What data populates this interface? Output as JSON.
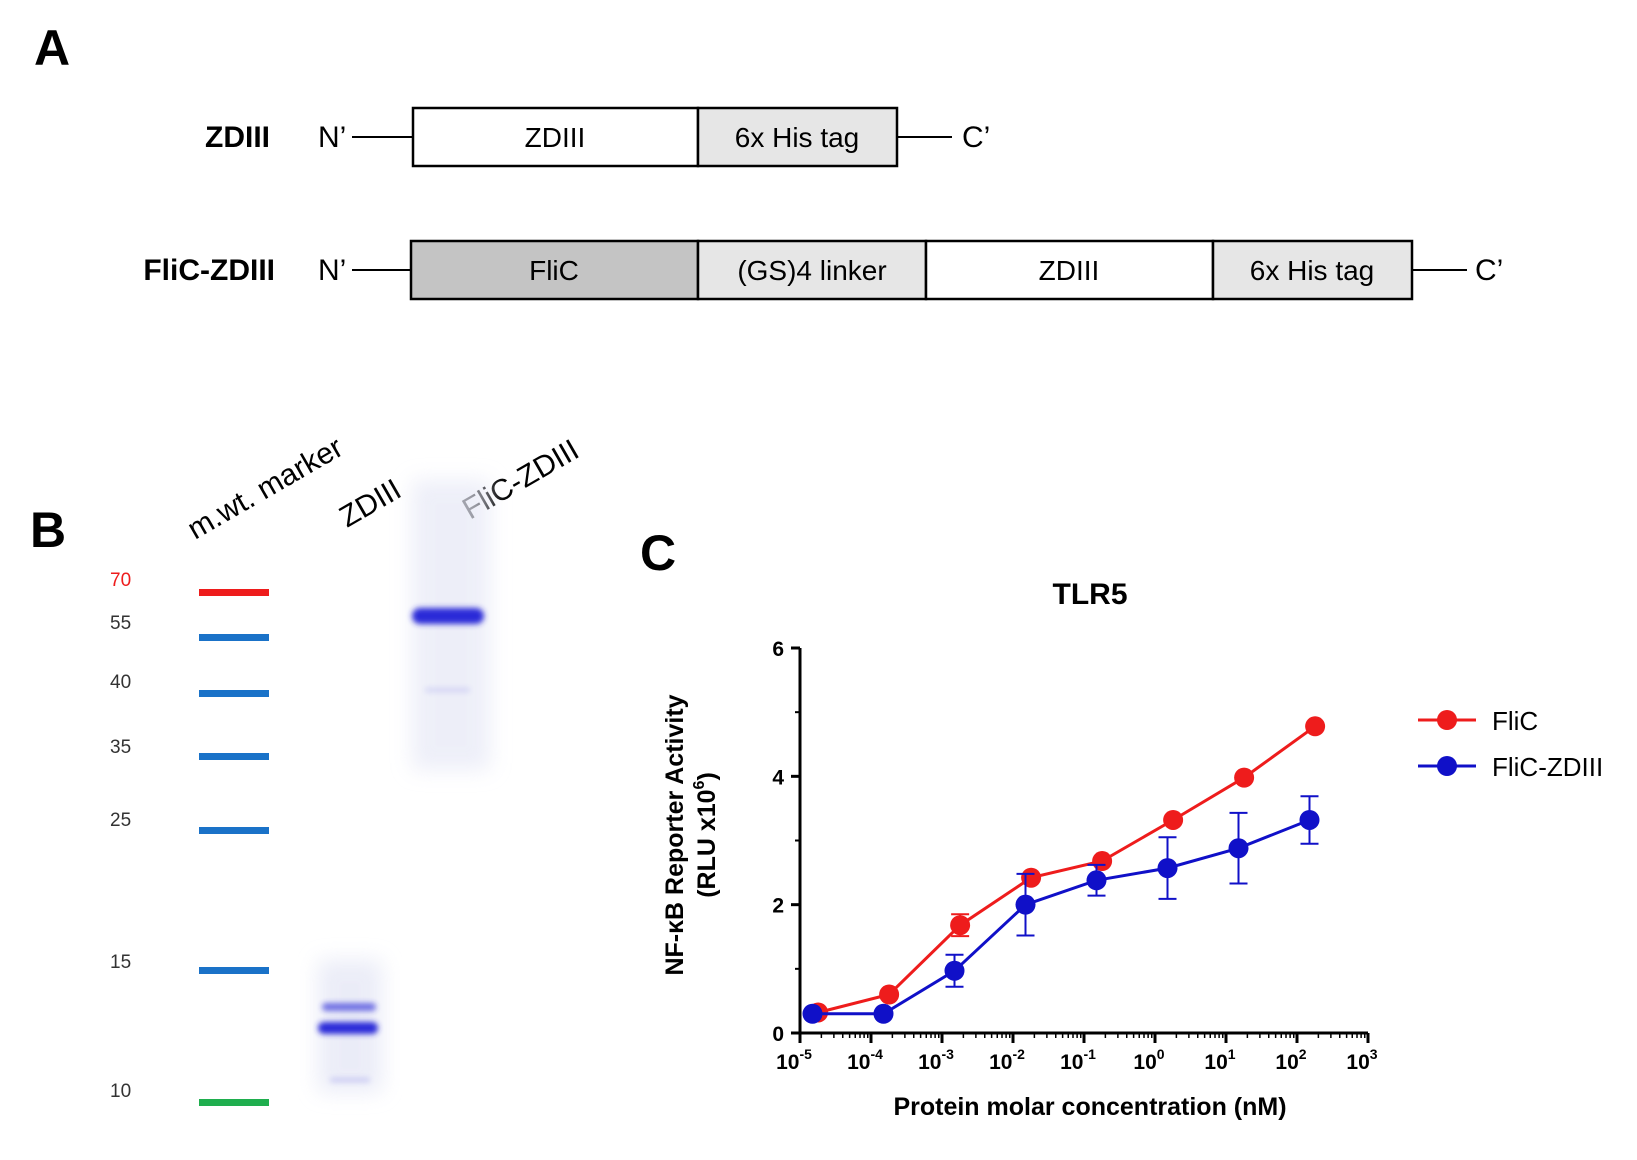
{
  "panels": {
    "a": "A",
    "b": "B",
    "c": "C"
  },
  "constructs": [
    {
      "name": "ZDIII",
      "n_term": "N’",
      "c_term": "C’",
      "segments": [
        {
          "label": "ZDIII",
          "color": "#ffffff"
        },
        {
          "label": "6x His tag",
          "color": "#e6e6e6"
        }
      ]
    },
    {
      "name": "FliC-ZDIII",
      "n_term": "N’",
      "c_term": "C’",
      "segments": [
        {
          "label": "FliC",
          "color": "#c4c4c4"
        },
        {
          "label": "(GS)4 linker",
          "color": "#e6e6e6"
        },
        {
          "label": "ZDIII",
          "color": "#ffffff"
        },
        {
          "label": "6x His tag",
          "color": "#e6e6e6"
        }
      ]
    }
  ],
  "gel": {
    "lane_labels": [
      "m.wt. marker",
      "ZDIII",
      "FliC-ZDIII"
    ],
    "markers": [
      {
        "label": "70",
        "color": "#ee1c1c"
      },
      {
        "label": "55",
        "color": "#1a72c8"
      },
      {
        "label": "40",
        "color": "#1a72c8"
      },
      {
        "label": "35",
        "color": "#1a72c8"
      },
      {
        "label": "25",
        "color": "#1a72c8"
      },
      {
        "label": "15",
        "color": "#1a72c8"
      },
      {
        "label": "10",
        "color": "#1fae4e"
      }
    ],
    "marker_label_colors": [
      "#ee1c1c",
      "#333333",
      "#333333",
      "#333333",
      "#333333",
      "#333333",
      "#333333"
    ],
    "band_color": "#2a2ad8"
  },
  "chart_data": {
    "type": "line",
    "title": "TLR5",
    "xlabel": "Protein molar concentration (nM)",
    "ylabel_line1": "NF-κB Reporter Activity",
    "ylabel_line2": "(RLU x10",
    "ylabel_sup": "6",
    "ylabel_close": ")",
    "x_scale": "log",
    "xlim": [
      1e-05,
      1000
    ],
    "ylim": [
      0,
      6
    ],
    "x_ticks": [
      {
        "base": "10",
        "exp": "-5"
      },
      {
        "base": "10",
        "exp": "-4"
      },
      {
        "base": "10",
        "exp": "-3"
      },
      {
        "base": "10",
        "exp": "-2"
      },
      {
        "base": "10",
        "exp": "-1"
      },
      {
        "base": "10",
        "exp": "0"
      },
      {
        "base": "10",
        "exp": "1"
      },
      {
        "base": "10",
        "exp": "2"
      },
      {
        "base": "10",
        "exp": "3"
      }
    ],
    "y_ticks": [
      "0",
      "2",
      "4",
      "6"
    ],
    "legend_position": "right",
    "series": [
      {
        "name": "FliC",
        "color": "#ee1c1c",
        "x": [
          1.8e-05,
          0.00018,
          0.0018,
          0.018,
          0.18,
          1.8,
          18,
          180
        ],
        "y": [
          0.32,
          0.6,
          1.68,
          2.42,
          2.68,
          3.32,
          3.98,
          4.78
        ],
        "err": [
          0.0,
          0.0,
          0.17,
          0.0,
          0.0,
          0.0,
          0.0,
          0.0
        ]
      },
      {
        "name": "FliC-ZDIII",
        "color": "#1010c8",
        "x": [
          1.5e-05,
          0.00015,
          0.0015,
          0.015,
          0.15,
          1.5,
          15,
          150
        ],
        "y": [
          0.3,
          0.3,
          0.97,
          2.0,
          2.38,
          2.57,
          2.88,
          3.32
        ],
        "err": [
          0.0,
          0.0,
          0.25,
          0.48,
          0.24,
          0.48,
          0.55,
          0.37
        ]
      }
    ]
  }
}
